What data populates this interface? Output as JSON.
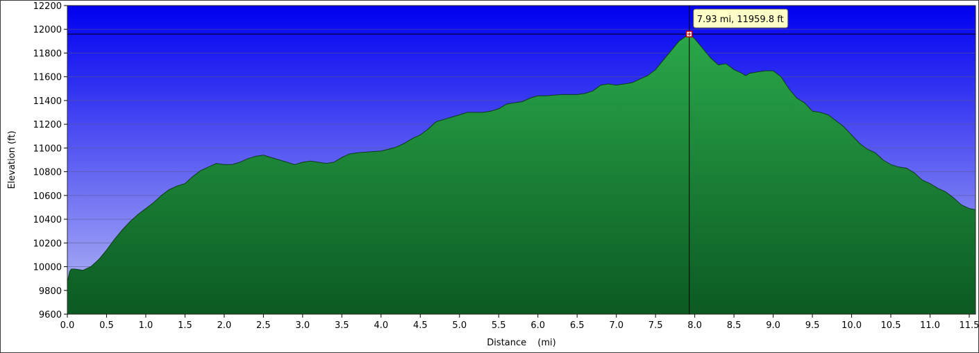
{
  "colors": {
    "sky_top": "#0000f0",
    "sky_bottom": "#b8bcf4",
    "fill_top": "#2aa84a",
    "fill_bottom": "#0b5a22",
    "outline": "#0e3a18",
    "grid": "#5a5a8a",
    "tooltip_bg": "#ffffc8"
  },
  "chart_data": {
    "type": "area",
    "title": "",
    "xlabel": "Distance",
    "xunit": "(mi)",
    "ylabel": "Elevation (ft)",
    "xlim": [
      0,
      11.58
    ],
    "ylim": [
      9600,
      12200
    ],
    "x_ticks": [
      "0.0",
      "0.5",
      "1.0",
      "1.5",
      "2.0",
      "2.5",
      "3.0",
      "3.5",
      "4.0",
      "4.5",
      "5.0",
      "5.5",
      "6.0",
      "6.5",
      "7.0",
      "7.5",
      "8.0",
      "8.5",
      "9.0",
      "9.5",
      "10.0",
      "10.5",
      "11.0",
      "11.5"
    ],
    "y_ticks": [
      "12200",
      "12000",
      "11800",
      "11600",
      "11400",
      "11200",
      "11000",
      "10800",
      "10600",
      "10400",
      "10200",
      "10000",
      "9800",
      "9600"
    ],
    "grid": true,
    "series": [
      {
        "x": [
          0.0,
          0.03,
          0.05,
          0.1,
          0.2,
          0.3,
          0.4,
          0.5,
          0.6,
          0.7,
          0.8,
          0.9,
          1.0,
          1.1,
          1.2,
          1.3,
          1.4,
          1.5,
          1.6,
          1.7,
          1.8,
          1.9,
          2.0,
          2.1,
          2.2,
          2.3,
          2.4,
          2.5,
          2.6,
          2.7,
          2.8,
          2.9,
          3.0,
          3.1,
          3.2,
          3.3,
          3.4,
          3.5,
          3.6,
          3.7,
          3.8,
          3.9,
          4.0,
          4.1,
          4.2,
          4.3,
          4.4,
          4.5,
          4.6,
          4.7,
          4.8,
          4.9,
          5.0,
          5.1,
          5.2,
          5.3,
          5.4,
          5.5,
          5.6,
          5.7,
          5.8,
          5.9,
          6.0,
          6.1,
          6.2,
          6.3,
          6.4,
          6.5,
          6.6,
          6.7,
          6.8,
          6.9,
          7.0,
          7.1,
          7.2,
          7.3,
          7.4,
          7.5,
          7.6,
          7.7,
          7.8,
          7.9,
          7.93,
          8.0,
          8.1,
          8.2,
          8.3,
          8.4,
          8.5,
          8.6,
          8.65,
          8.7,
          8.8,
          8.9,
          9.0,
          9.1,
          9.2,
          9.3,
          9.4,
          9.5,
          9.6,
          9.7,
          9.8,
          9.9,
          10.0,
          10.1,
          10.2,
          10.3,
          10.4,
          10.5,
          10.6,
          10.7,
          10.8,
          10.9,
          11.0,
          11.1,
          11.2,
          11.3,
          11.4,
          11.5,
          11.58
        ],
        "y": [
          9870,
          9960,
          9980,
          9980,
          9970,
          10000,
          10060,
          10140,
          10230,
          10310,
          10380,
          10440,
          10490,
          10540,
          10600,
          10650,
          10680,
          10700,
          10760,
          10810,
          10840,
          10870,
          10860,
          10860,
          10880,
          10910,
          10930,
          10940,
          10920,
          10900,
          10880,
          10860,
          10880,
          10890,
          10880,
          10870,
          10880,
          10920,
          10950,
          10960,
          10965,
          10970,
          10975,
          10990,
          11010,
          11040,
          11080,
          11110,
          11160,
          11220,
          11240,
          11260,
          11280,
          11300,
          11300,
          11300,
          11310,
          11330,
          11370,
          11380,
          11390,
          11420,
          11440,
          11440,
          11445,
          11450,
          11450,
          11450,
          11460,
          11480,
          11530,
          11540,
          11530,
          11540,
          11550,
          11580,
          11610,
          11660,
          11740,
          11820,
          11900,
          11945,
          11960,
          11920,
          11840,
          11760,
          11700,
          11710,
          11660,
          11630,
          11610,
          11630,
          11640,
          11650,
          11650,
          11600,
          11500,
          11420,
          11380,
          11310,
          11300,
          11280,
          11230,
          11180,
          11110,
          11040,
          10990,
          10960,
          10900,
          10860,
          10840,
          10830,
          10790,
          10730,
          10700,
          10660,
          10630,
          10580,
          10520,
          10490,
          10480
        ]
      }
    ],
    "marker": {
      "x": 7.93,
      "y": 11959.8,
      "label": "7.93 mi, 11959.8 ft"
    }
  }
}
